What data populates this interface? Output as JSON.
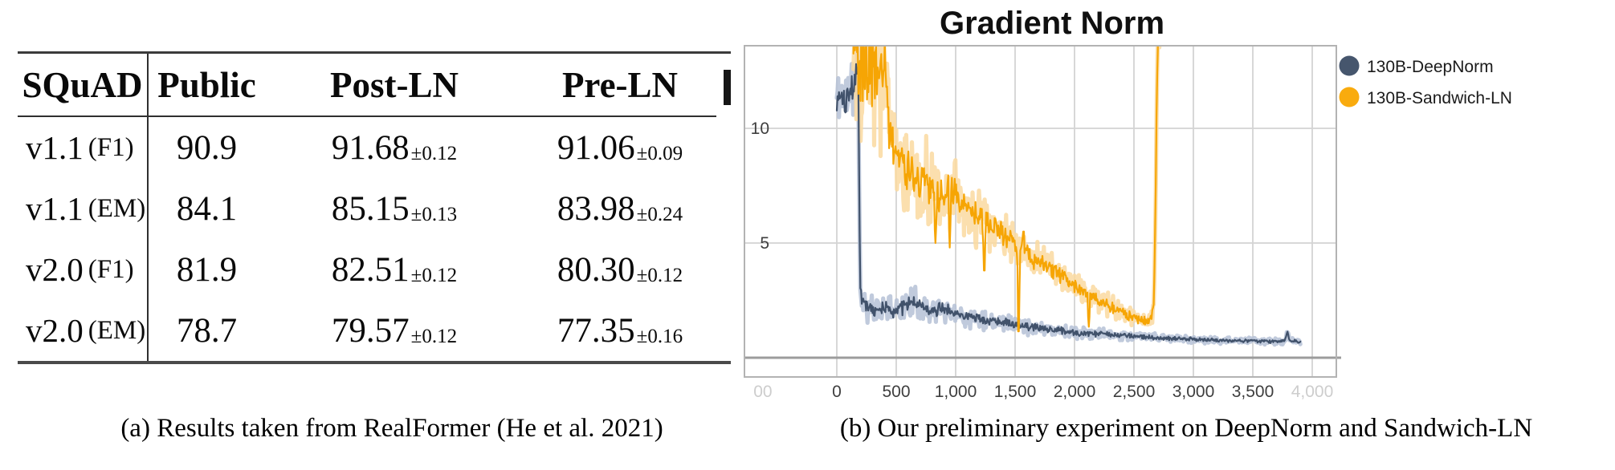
{
  "figure_a": {
    "table": {
      "header": [
        "SQuAD",
        "Public",
        "Post-LN",
        "Pre-LN"
      ],
      "rows": [
        {
          "label": "v1.1",
          "metric": "(F1)",
          "public": "90.9",
          "post_ln": "91.68",
          "post_ln_err": "±0.12",
          "pre_ln": "91.06",
          "pre_ln_err": "±0.09"
        },
        {
          "label": "v1.1",
          "metric": "(EM)",
          "public": "84.1",
          "post_ln": "85.15",
          "post_ln_err": "±0.13",
          "pre_ln": "83.98",
          "pre_ln_err": "±0.24"
        },
        {
          "label": "v2.0",
          "metric": "(F1)",
          "public": "81.9",
          "post_ln": "82.51",
          "post_ln_err": "±0.12",
          "pre_ln": "80.30",
          "pre_ln_err": "±0.12"
        },
        {
          "label": "v2.0",
          "metric": "(EM)",
          "public": "78.7",
          "post_ln": "79.57",
          "post_ln_err": "±0.12",
          "pre_ln": "77.35",
          "pre_ln_err": "±0.16"
        }
      ]
    },
    "caption": "(a) Results taken from RealFormer (He et al. 2021)"
  },
  "figure_b": {
    "title": "Gradient Norm",
    "caption": "(b) Our preliminary experiment on DeepNorm and Sandwich-LN",
    "legend": [
      {
        "label": "130B-DeepNorm",
        "color": "#46566D"
      },
      {
        "label": "130B-Sandwich-LN",
        "color": "#F9AB0E"
      }
    ],
    "chart_data": {
      "type": "line",
      "title": "Gradient Norm",
      "xlabel": "",
      "ylabel": "",
      "xlim": [
        -784,
        4203
      ],
      "ylim": [
        -0.84,
        13.6
      ],
      "grid": true,
      "zero_line": true,
      "legend_position": "right",
      "x_ticks": [
        {
          "value": -622,
          "label": "00",
          "faded": true
        },
        {
          "value": 0,
          "label": "0",
          "faded": false
        },
        {
          "value": 500,
          "label": "500",
          "faded": false
        },
        {
          "value": 1000,
          "label": "1,000",
          "faded": false
        },
        {
          "value": 1500,
          "label": "1,500",
          "faded": false
        },
        {
          "value": 2000,
          "label": "2,000",
          "faded": false
        },
        {
          "value": 2500,
          "label": "2,500",
          "faded": false
        },
        {
          "value": 3000,
          "label": "3,000",
          "faded": false
        },
        {
          "value": 3500,
          "label": "3,500",
          "faded": false
        },
        {
          "value": 4000,
          "label": "4,000",
          "faded": true
        }
      ],
      "y_ticks": [
        {
          "value": 5,
          "label": "5"
        },
        {
          "value": 10,
          "label": "10"
        }
      ],
      "series": [
        {
          "name": "130B-DeepNorm",
          "color": "#41526B",
          "halo_color": "#B5C1D6",
          "start_x": 0,
          "end_x": 3900,
          "trend": [
            [
              0,
              11.3
            ],
            [
              40,
              11.6
            ],
            [
              80,
              11.2
            ],
            [
              120,
              11.7
            ],
            [
              150,
              12.0
            ],
            [
              170,
              12.6
            ],
            [
              178,
              13.3
            ],
            [
              183,
              11.5
            ],
            [
              190,
              6.5
            ],
            [
              198,
              3.2
            ],
            [
              210,
              2.5
            ],
            [
              260,
              2.2
            ],
            [
              330,
              2.1
            ],
            [
              400,
              2.15
            ],
            [
              470,
              2.05
            ],
            [
              540,
              2.2
            ],
            [
              610,
              2.35
            ],
            [
              660,
              2.45
            ],
            [
              710,
              2.25
            ],
            [
              780,
              2.05
            ],
            [
              850,
              2.1
            ],
            [
              920,
              2.15
            ],
            [
              1000,
              1.95
            ],
            [
              1080,
              1.8
            ],
            [
              1160,
              1.75
            ],
            [
              1260,
              1.65
            ],
            [
              1360,
              1.6
            ],
            [
              1460,
              1.5
            ],
            [
              1580,
              1.4
            ],
            [
              1700,
              1.3
            ],
            [
              1850,
              1.2
            ],
            [
              2000,
              1.1
            ],
            [
              2150,
              1.05
            ],
            [
              2300,
              1.0
            ],
            [
              2450,
              0.95
            ],
            [
              2600,
              0.9
            ],
            [
              2750,
              0.85
            ],
            [
              2900,
              0.82
            ],
            [
              3100,
              0.78
            ],
            [
              3300,
              0.75
            ],
            [
              3500,
              0.73
            ],
            [
              3700,
              0.7
            ],
            [
              3770,
              0.72
            ],
            [
              3790,
              1.15
            ],
            [
              3810,
              0.75
            ],
            [
              3900,
              0.7
            ]
          ],
          "noise_amp": [
            [
              0,
              0.85
            ],
            [
              150,
              0.9
            ],
            [
              178,
              0.6
            ],
            [
              195,
              0.45
            ],
            [
              250,
              0.4
            ],
            [
              400,
              0.38
            ],
            [
              700,
              0.4
            ],
            [
              1000,
              0.32
            ],
            [
              1400,
              0.25
            ],
            [
              1800,
              0.2
            ],
            [
              2200,
              0.15
            ],
            [
              2600,
              0.12
            ],
            [
              3000,
              0.1
            ],
            [
              3500,
              0.09
            ],
            [
              3900,
              0.08
            ]
          ],
          "spikes": []
        },
        {
          "name": "130B-Sandwich-LN",
          "color": "#F6A504",
          "halo_color": "#FAD9A0",
          "start_x": 140,
          "end_x": 2715,
          "trend": [
            [
              140,
              13.5
            ],
            [
              400,
              13.0
            ],
            [
              430,
              11.0
            ],
            [
              460,
              9.8
            ],
            [
              500,
              8.9
            ],
            [
              560,
              8.3
            ],
            [
              620,
              7.9
            ],
            [
              700,
              7.6
            ],
            [
              760,
              7.8
            ],
            [
              820,
              7.4
            ],
            [
              880,
              7.1
            ],
            [
              950,
              7.3
            ],
            [
              1020,
              6.9
            ],
            [
              1100,
              6.5
            ],
            [
              1200,
              6.1
            ],
            [
              1300,
              5.8
            ],
            [
              1420,
              5.3
            ],
            [
              1540,
              4.8
            ],
            [
              1660,
              4.3
            ],
            [
              1780,
              3.9
            ],
            [
              1900,
              3.5
            ],
            [
              2020,
              3.1
            ],
            [
              2140,
              2.7
            ],
            [
              2260,
              2.35
            ],
            [
              2380,
              2.0
            ],
            [
              2480,
              1.8
            ],
            [
              2560,
              1.65
            ],
            [
              2640,
              1.6
            ],
            [
              2665,
              2.2
            ],
            [
              2680,
              6.0
            ],
            [
              2692,
              11.0
            ],
            [
              2700,
              13.8
            ],
            [
              2715,
              13.8
            ]
          ],
          "noise_amp": [
            [
              140,
              3.2
            ],
            [
              380,
              3.0
            ],
            [
              430,
              1.6
            ],
            [
              500,
              1.3
            ],
            [
              700,
              1.1
            ],
            [
              900,
              1.0
            ],
            [
              1100,
              0.85
            ],
            [
              1300,
              0.7
            ],
            [
              1500,
              0.6
            ],
            [
              1700,
              0.5
            ],
            [
              1900,
              0.45
            ],
            [
              2100,
              0.4
            ],
            [
              2300,
              0.3
            ],
            [
              2500,
              0.25
            ],
            [
              2640,
              0.18
            ],
            [
              2680,
              0.5
            ],
            [
              2715,
              0.3
            ]
          ],
          "spikes": [
            [
              830,
              5.0
            ],
            [
              950,
              4.8
            ],
            [
              1240,
              3.8
            ],
            [
              1530,
              1.15
            ],
            [
              1570,
              5.5
            ],
            [
              2120,
              1.35
            ]
          ]
        }
      ]
    }
  }
}
